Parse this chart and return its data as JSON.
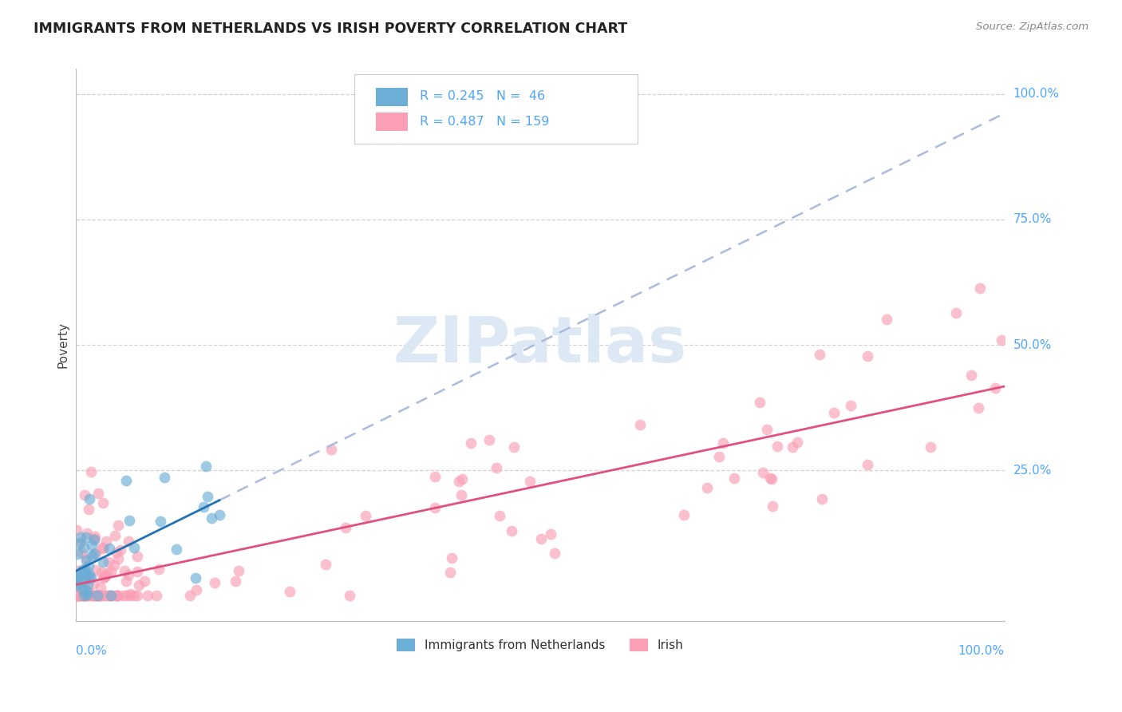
{
  "title": "IMMIGRANTS FROM NETHERLANDS VS IRISH POVERTY CORRELATION CHART",
  "source": "Source: ZipAtlas.com",
  "ylabel": "Poverty",
  "legend_items": [
    "Immigrants from Netherlands",
    "Irish"
  ],
  "blue_color": "#6baed6",
  "pink_color": "#fa9fb5",
  "blue_line_color": "#2171b5",
  "pink_line_color": "#e05080",
  "dashed_line_color": "#aabbdd",
  "background_color": "#ffffff",
  "grid_color": "#c8c8c8",
  "title_color": "#222222",
  "axis_label_color": "#4da6ff",
  "label_color": "#4da6ff",
  "watermark_color": "#dde8f5",
  "nl_seed": 10,
  "ir_seed": 20,
  "nl_n": 46,
  "ir_n": 159
}
